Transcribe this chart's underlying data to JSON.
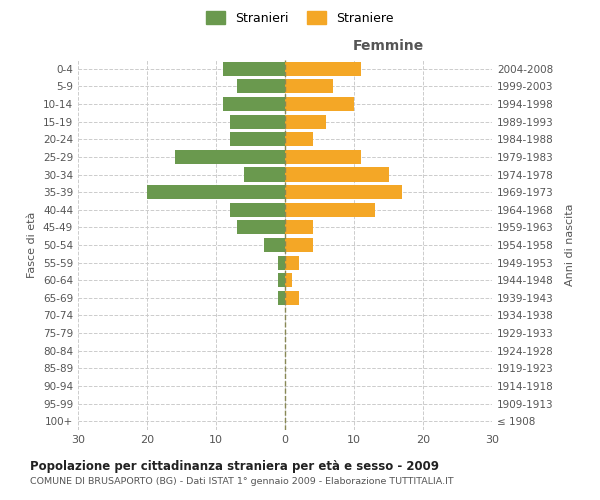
{
  "age_groups": [
    "100+",
    "95-99",
    "90-94",
    "85-89",
    "80-84",
    "75-79",
    "70-74",
    "65-69",
    "60-64",
    "55-59",
    "50-54",
    "45-49",
    "40-44",
    "35-39",
    "30-34",
    "25-29",
    "20-24",
    "15-19",
    "10-14",
    "5-9",
    "0-4"
  ],
  "birth_years": [
    "≤ 1908",
    "1909-1913",
    "1914-1918",
    "1919-1923",
    "1924-1928",
    "1929-1933",
    "1934-1938",
    "1939-1943",
    "1944-1948",
    "1949-1953",
    "1954-1958",
    "1959-1963",
    "1964-1968",
    "1969-1973",
    "1974-1978",
    "1979-1983",
    "1984-1988",
    "1989-1993",
    "1994-1998",
    "1999-2003",
    "2004-2008"
  ],
  "males": [
    0,
    0,
    0,
    0,
    0,
    0,
    0,
    1,
    1,
    1,
    3,
    7,
    8,
    20,
    6,
    16,
    8,
    8,
    9,
    7,
    9
  ],
  "females": [
    0,
    0,
    0,
    0,
    0,
    0,
    0,
    2,
    1,
    2,
    4,
    4,
    13,
    17,
    15,
    11,
    4,
    6,
    10,
    7,
    11
  ],
  "male_color": "#6a994e",
  "female_color": "#f4a726",
  "male_label": "Stranieri",
  "female_label": "Straniere",
  "title_main": "Popolazione per cittadinanza straniera per età e sesso - 2009",
  "title_sub": "COMUNE DI BRUSAPORTO (BG) - Dati ISTAT 1° gennaio 2009 - Elaborazione TUTTITALIA.IT",
  "xlabel_right": "Femmine",
  "ylabel_left": "Fasce di età",
  "ylabel_right": "Anni di nascita",
  "xlim": 30,
  "grid_color": "#cccccc",
  "background_color": "#ffffff",
  "bar_height": 0.8,
  "xtick_vals": [
    -30,
    -20,
    -10,
    0,
    10,
    20,
    30
  ]
}
